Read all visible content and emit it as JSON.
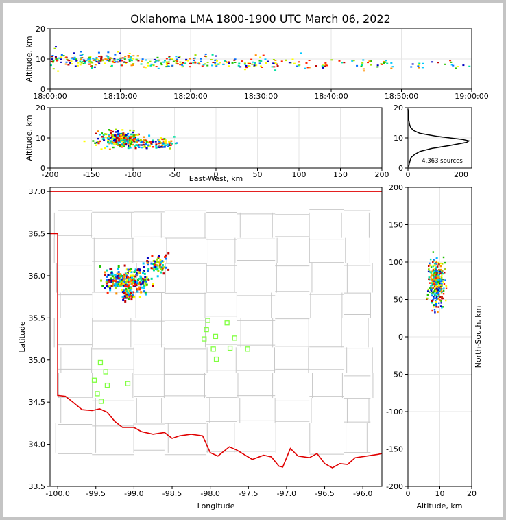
{
  "chart_data": [
    {
      "type": "scatter",
      "panel": "altitude-vs-time",
      "title": "Oklahoma LMA 1800-1900 UTC March 06, 2022",
      "xlabel": "",
      "ylabel": "Altitude, km",
      "xlim": [
        "18:00:00",
        "19:00:00"
      ],
      "ylim": [
        0,
        20
      ],
      "xticks": [
        "18:00:00",
        "18:10:00",
        "18:20:00",
        "18:30:00",
        "18:40:00",
        "18:50:00",
        "19:00:00"
      ],
      "yticks": [
        0,
        10,
        20
      ],
      "grid": true,
      "colormap": [
        "#0000c0",
        "#0070ff",
        "#00c8ff",
        "#00e0a0",
        "#20c000",
        "#a0e000",
        "#ffff00",
        "#ff9000",
        "#ff2000",
        "#c00000"
      ],
      "density_clusters": [
        {
          "t_min": 0,
          "t_max": 12,
          "alt_mean": 9.8,
          "alt_sd": 1.2,
          "count": 170
        },
        {
          "t_min": 12,
          "t_max": 24,
          "alt_mean": 9.0,
          "alt_sd": 1.1,
          "count": 110
        },
        {
          "t_min": 24,
          "t_max": 36,
          "alt_mean": 8.6,
          "alt_sd": 0.9,
          "count": 70
        },
        {
          "t_min": 36,
          "t_max": 48,
          "alt_mean": 8.4,
          "alt_sd": 0.8,
          "count": 40
        },
        {
          "t_min": 48,
          "t_max": 60,
          "alt_mean": 8.0,
          "alt_sd": 0.7,
          "count": 22
        }
      ]
    },
    {
      "type": "scatter",
      "panel": "altitude-vs-east-west",
      "xlabel": "East-West, km",
      "ylabel": "Altitude, km",
      "xlim": [
        -200,
        200
      ],
      "ylim": [
        0,
        20
      ],
      "xticks": [
        -200,
        -150,
        -100,
        -50,
        0,
        50,
        100,
        150,
        200
      ],
      "yticks": [
        0,
        10,
        20
      ],
      "grid": true,
      "density_clusters": [
        {
          "x_mean": -115,
          "x_sd": 12,
          "alt_mean": 9.5,
          "alt_sd": 1.3,
          "count": 260
        },
        {
          "x_mean": -75,
          "x_sd": 14,
          "alt_mean": 8.0,
          "alt_sd": 1.0,
          "count": 110
        }
      ]
    },
    {
      "type": "line",
      "panel": "altitude-histogram",
      "xlim": [
        0,
        240
      ],
      "ylim": [
        0,
        20
      ],
      "xticks": [
        0,
        200
      ],
      "yticks": [
        0,
        10,
        20
      ],
      "grid": true,
      "annotation": "4,363 sources",
      "profile": {
        "altitude_km": [
          0.5,
          1.5,
          2.5,
          3.5,
          4.5,
          5.5,
          6.5,
          7.5,
          8.5,
          9.0,
          9.5,
          10.5,
          11.5,
          12.5,
          13.5,
          14.5,
          15.5,
          16.5,
          17.5,
          18.5,
          19.5
        ],
        "count": [
          3,
          5,
          8,
          12,
          25,
          45,
          90,
          160,
          220,
          230,
          205,
          110,
          45,
          20,
          10,
          6,
          4,
          2,
          1,
          1,
          0
        ]
      }
    },
    {
      "type": "scatter",
      "panel": "plan-view-map",
      "xlabel": "Longitude",
      "ylabel": "Latitude",
      "xlim": [
        -100.1,
        -95.75
      ],
      "ylim": [
        33.5,
        37.05
      ],
      "xticks": [
        -100.0,
        -99.5,
        -99.0,
        -98.5,
        -98.0,
        -97.5,
        -97.0,
        -96.5,
        -96.0
      ],
      "yticks": [
        33.5,
        34.0,
        34.5,
        35.0,
        35.5,
        36.0,
        36.5,
        37.0
      ],
      "stations": [
        {
          "lon": -99.44,
          "lat": 34.97
        },
        {
          "lon": -99.37,
          "lat": 34.86
        },
        {
          "lon": -99.52,
          "lat": 34.76
        },
        {
          "lon": -99.35,
          "lat": 34.7
        },
        {
          "lon": -99.48,
          "lat": 34.6
        },
        {
          "lon": -99.43,
          "lat": 34.51
        },
        {
          "lon": -99.08,
          "lat": 34.72
        },
        {
          "lon": -98.03,
          "lat": 35.47
        },
        {
          "lon": -98.05,
          "lat": 35.36
        },
        {
          "lon": -97.78,
          "lat": 35.44
        },
        {
          "lon": -98.08,
          "lat": 35.25
        },
        {
          "lon": -97.93,
          "lat": 35.28
        },
        {
          "lon": -97.68,
          "lat": 35.26
        },
        {
          "lon": -97.96,
          "lat": 35.13
        },
        {
          "lon": -97.74,
          "lat": 35.14
        },
        {
          "lon": -97.51,
          "lat": 35.13
        },
        {
          "lon": -97.92,
          "lat": 35.01
        }
      ],
      "density_clusters": [
        {
          "lon_mean": -99.22,
          "lat_mean": 35.96,
          "lon_sd": 0.09,
          "lat_sd": 0.07,
          "count": 150
        },
        {
          "lon_mean": -98.95,
          "lat_mean": 35.94,
          "lon_sd": 0.08,
          "lat_sd": 0.08,
          "count": 120
        },
        {
          "lon_mean": -98.68,
          "lat_mean": 36.13,
          "lon_sd": 0.07,
          "lat_sd": 0.06,
          "count": 60
        },
        {
          "lon_mean": -99.1,
          "lat_mean": 35.78,
          "lon_sd": 0.05,
          "lat_sd": 0.04,
          "count": 50
        }
      ],
      "border_color": "#e00000"
    },
    {
      "type": "scatter",
      "panel": "north-south-vs-altitude",
      "xlabel": "Altitude, km",
      "ylabel": "North-South, km",
      "xlim": [
        0,
        20
      ],
      "ylim": [
        -200,
        200
      ],
      "xticks": [
        0,
        10,
        20
      ],
      "yticks": [
        -200,
        -150,
        -100,
        -50,
        0,
        50,
        100,
        150,
        200
      ],
      "grid": true,
      "density_clusters": [
        {
          "alt_mean": 9.0,
          "alt_sd": 1.2,
          "ns_mean": 72,
          "ns_sd": 15,
          "count": 380
        }
      ]
    }
  ]
}
